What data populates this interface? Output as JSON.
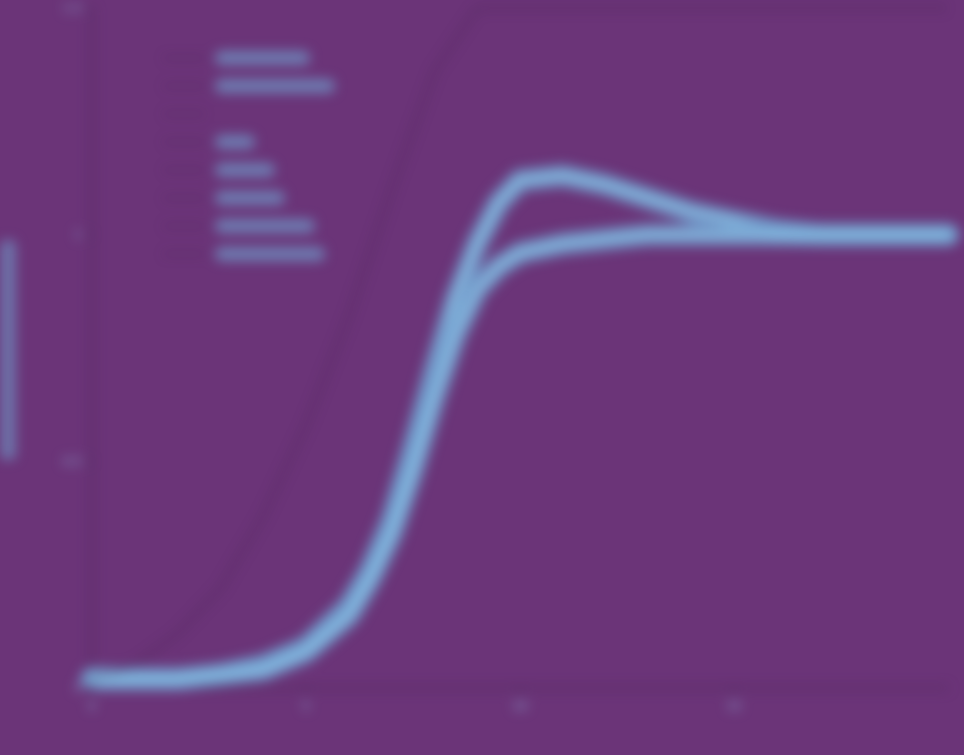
{
  "colors": {
    "background": "#6b3478",
    "series_band": "#6f9ccc",
    "series_core": "#8fc3e6",
    "reference_line": "#3d1f47",
    "axis": "#4f2a5c",
    "text": "#8fb0d8"
  },
  "chart_data": {
    "type": "line",
    "title": "",
    "xlabel": "",
    "ylabel": "",
    "xlim": [
      0,
      20
    ],
    "ylim": [
      0,
      1.5
    ],
    "x_ticks": [
      0,
      5,
      10,
      15
    ],
    "x_tick_labels": [
      "0",
      "5",
      "10",
      "15"
    ],
    "y_ticks": [
      0,
      0.5,
      1,
      1.5
    ],
    "y_tick_labels": [
      "0",
      "0.5",
      "1",
      "1.5"
    ],
    "grid": false,
    "legend_placement": "top-left",
    "series": [
      {
        "style": "band",
        "x": [
          0,
          2,
          3,
          4,
          5,
          6,
          6.5,
          7,
          7.5,
          8,
          8.5,
          9,
          9.5,
          10,
          11,
          12,
          13,
          14,
          15,
          16,
          17,
          18,
          19,
          20
        ],
        "y": [
          0.02,
          0.02,
          0.03,
          0.05,
          0.09,
          0.18,
          0.26,
          0.37,
          0.53,
          0.7,
          0.86,
          0.98,
          1.07,
          1.12,
          1.13,
          1.11,
          1.08,
          1.05,
          1.03,
          1.01,
          1.0,
          1.0,
          1.0,
          1.0
        ]
      },
      {
        "style": "band",
        "x": [
          0,
          2,
          3,
          4,
          5,
          6,
          6.5,
          7,
          7.5,
          8,
          8.5,
          9,
          9.5,
          10,
          11,
          12,
          13,
          14,
          15,
          16,
          17,
          18,
          19,
          20
        ],
        "y": [
          0.02,
          0.02,
          0.03,
          0.04,
          0.08,
          0.16,
          0.24,
          0.34,
          0.48,
          0.64,
          0.78,
          0.88,
          0.93,
          0.96,
          0.98,
          0.99,
          1.0,
          1.0,
          1.0,
          1.0,
          1.0,
          1.0,
          1.0,
          1.0
        ]
      },
      {
        "style": "dotted",
        "x": [
          0,
          1,
          2,
          3,
          4,
          5,
          6,
          7,
          8,
          9,
          10,
          11,
          12,
          13,
          14,
          15,
          16,
          17,
          18,
          19,
          20
        ],
        "y": [
          0.02,
          0.05,
          0.12,
          0.22,
          0.38,
          0.58,
          0.82,
          1.1,
          1.36,
          1.5,
          1.5,
          1.5,
          1.5,
          1.5,
          1.5,
          1.5,
          1.5,
          1.5,
          1.5,
          1.5,
          1.5
        ]
      }
    ]
  }
}
